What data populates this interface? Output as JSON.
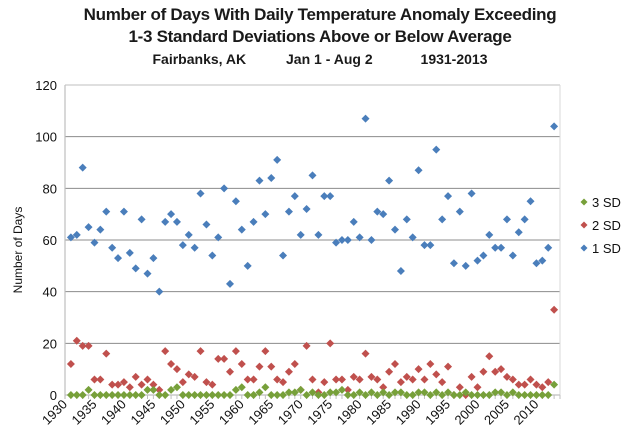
{
  "chart_data": {
    "type": "scatter",
    "title": "Number of Days With Daily Temperature Anomaly Exceeding",
    "title_line2": "1-3 Standard Deviations Above or Below Average",
    "subtitle": {
      "location": "Fairbanks, AK",
      "period": "Jan 1 - Aug 2",
      "years": "1931-2013"
    },
    "xlabel": "",
    "ylabel": "Number of Days",
    "xlim": [
      1930,
      2014
    ],
    "ylim": [
      0,
      120
    ],
    "yticks": [
      0,
      20,
      40,
      60,
      80,
      100,
      120
    ],
    "xticks": [
      1930,
      1935,
      1940,
      1945,
      1950,
      1955,
      1960,
      1965,
      1970,
      1975,
      1980,
      1985,
      1990,
      1995,
      2000,
      2005,
      2010
    ],
    "grid": "horizontal",
    "legend_position": "right",
    "x": [
      1931,
      1932,
      1933,
      1934,
      1935,
      1936,
      1937,
      1938,
      1939,
      1940,
      1941,
      1942,
      1943,
      1944,
      1945,
      1946,
      1947,
      1948,
      1949,
      1950,
      1951,
      1952,
      1953,
      1954,
      1955,
      1956,
      1957,
      1958,
      1959,
      1960,
      1961,
      1962,
      1963,
      1964,
      1965,
      1966,
      1967,
      1968,
      1969,
      1970,
      1971,
      1972,
      1973,
      1974,
      1975,
      1976,
      1977,
      1978,
      1979,
      1980,
      1981,
      1982,
      1983,
      1984,
      1985,
      1986,
      1987,
      1988,
      1989,
      1990,
      1991,
      1992,
      1993,
      1994,
      1995,
      1996,
      1997,
      1998,
      1999,
      2000,
      2001,
      2002,
      2003,
      2004,
      2005,
      2006,
      2007,
      2008,
      2009,
      2010,
      2011,
      2012,
      2013
    ],
    "series": [
      {
        "name": "3 SD",
        "color": "#77a03a",
        "values": [
          0,
          0,
          0,
          2,
          0,
          0,
          0,
          0,
          0,
          0,
          0,
          0,
          0,
          2,
          2,
          0,
          0,
          2,
          3,
          0,
          0,
          0,
          0,
          0,
          0,
          0,
          0,
          0,
          2,
          3,
          0,
          0,
          1,
          3,
          0,
          0,
          0,
          1,
          1,
          2,
          0,
          1,
          0,
          0,
          1,
          1,
          2,
          0,
          0,
          1,
          0,
          1,
          0,
          1,
          0,
          1,
          1,
          0,
          0,
          1,
          1,
          0,
          1,
          0,
          1,
          0,
          0,
          1,
          0,
          0,
          0,
          0,
          1,
          1,
          0,
          1,
          0,
          0,
          0,
          0,
          0,
          0,
          4
        ]
      },
      {
        "name": "2 SD",
        "color": "#c0504d",
        "values": [
          12,
          21,
          19,
          19,
          6,
          6,
          16,
          4,
          4,
          5,
          3,
          7,
          4,
          6,
          4,
          2,
          17,
          12,
          10,
          5,
          8,
          7,
          17,
          5,
          4,
          14,
          14,
          9,
          17,
          12,
          6,
          6,
          11,
          17,
          11,
          6,
          5,
          9,
          12,
          2,
          19,
          6,
          1,
          5,
          20,
          6,
          6,
          2,
          7,
          6,
          16,
          7,
          6,
          3,
          9,
          12,
          5,
          7,
          6,
          10,
          6,
          12,
          8,
          5,
          11,
          0,
          3,
          0,
          7,
          3,
          9,
          15,
          9,
          10,
          7,
          6,
          4,
          4,
          6,
          4,
          3,
          5,
          33
        ]
      },
      {
        "name": "1 SD",
        "color": "#4a7ebb",
        "values": [
          61,
          62,
          88,
          65,
          59,
          64,
          71,
          57,
          53,
          71,
          55,
          49,
          68,
          47,
          53,
          40,
          67,
          70,
          67,
          58,
          62,
          57,
          78,
          66,
          54,
          61,
          80,
          43,
          75,
          64,
          50,
          67,
          83,
          70,
          84,
          91,
          54,
          71,
          77,
          62,
          72,
          85,
          62,
          77,
          77,
          59,
          60,
          60,
          67,
          61,
          107,
          60,
          71,
          70,
          83,
          64,
          48,
          68,
          61,
          87,
          58,
          58,
          95,
          68,
          77,
          51,
          71,
          50,
          78,
          52,
          54,
          62,
          57,
          57,
          68,
          54,
          63,
          68,
          75,
          51,
          52,
          57,
          104
        ]
      }
    ]
  }
}
